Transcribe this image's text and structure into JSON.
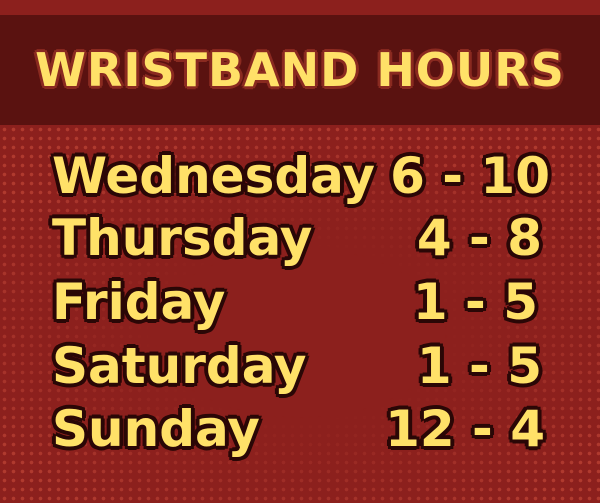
{
  "title": "WRISTBAND HOURS",
  "colors": {
    "background": "#8c201d",
    "band": "#5a1210",
    "text": "#ffe168",
    "outline": "#2a0706"
  },
  "schedule": [
    {
      "day": "Wednesday",
      "hours": "6 - 10"
    },
    {
      "day": "Thursday",
      "hours": "4 - 8"
    },
    {
      "day": "Friday",
      "hours": "1 - 5"
    },
    {
      "day": "Saturday",
      "hours": "1 - 5"
    },
    {
      "day": "Sunday",
      "hours": "12 - 4"
    }
  ]
}
